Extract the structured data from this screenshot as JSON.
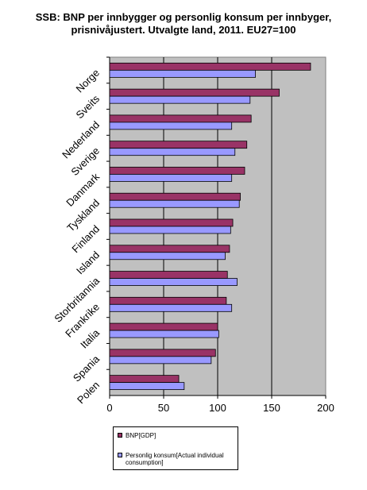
{
  "chart_data": {
    "type": "bar",
    "orientation": "horizontal",
    "title": "SSB: BNP per innbygger og personlig konsum per innbyger, prisnivåjustert. Utvalgte land, 2011. EU27=100",
    "title_lines": [
      "SSB: BNP per innbygger og personlig konsum per innbyger,",
      "prisnivåjustert. Utvalgte land, 2011. EU27=100"
    ],
    "categories": [
      "Norge",
      "Sveits",
      "Nederland",
      "Sverige",
      "Danmark",
      "Tyskland",
      "Finland",
      "Island",
      "Storbritannia",
      "Frankrike",
      "Italia",
      "Spania",
      "Polen"
    ],
    "series": [
      {
        "name": "BNP[GDP]",
        "color": "#993366",
        "values": [
          186,
          157,
          131,
          127,
          125,
          121,
          114,
          111,
          109,
          108,
          100,
          98,
          64
        ]
      },
      {
        "name": "Personlig konsum[Actual individual consumption]",
        "color": "#9999ff",
        "values": [
          135,
          130,
          113,
          116,
          113,
          120,
          112,
          107,
          118,
          113,
          101,
          94,
          69
        ]
      }
    ],
    "xlim": [
      0,
      200
    ],
    "xticks": [
      0,
      50,
      100,
      150,
      200
    ],
    "xtick_labels": [
      "0",
      "50",
      "100",
      "150",
      "200"
    ],
    "grid": "vertical",
    "plot_background": "#c0c0c0",
    "legend_position": "bottom-left",
    "legend": {
      "line1": "BNP[GDP]",
      "line2": "Personlig konsum[Actual individual consumption]"
    }
  }
}
